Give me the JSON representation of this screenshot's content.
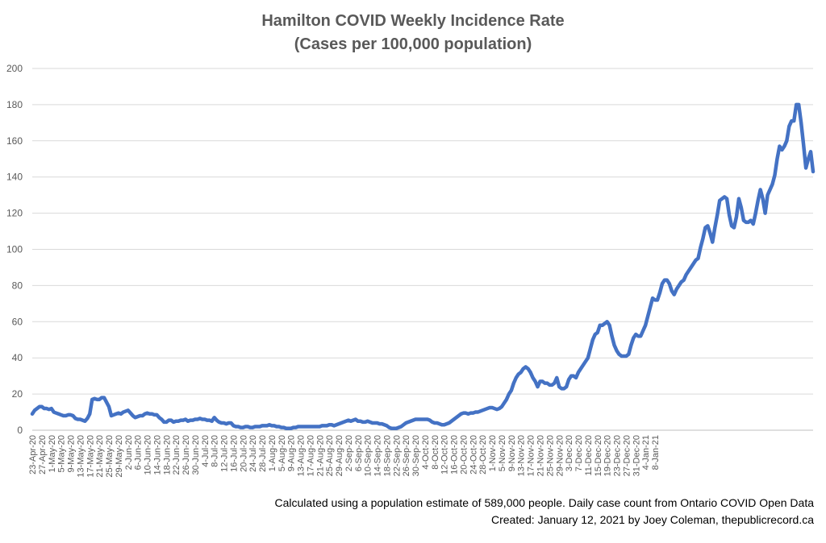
{
  "chart_data": {
    "type": "line",
    "title": "Hamilton COVID Weekly Incidence Rate",
    "subtitle": "(Cases per 100,000 population)",
    "ylim": [
      0,
      200
    ],
    "yticks": [
      0,
      20,
      40,
      60,
      80,
      100,
      120,
      140,
      160,
      180,
      200
    ],
    "grid": true,
    "line_color": "#4472C4",
    "x_start_date": "23-Apr-20",
    "x_tick_labels": [
      "23-Apr-20",
      "27-Apr-20",
      "1-May-20",
      "5-May-20",
      "9-May-20",
      "13-May-20",
      "17-May-20",
      "21-May-20",
      "25-May-20",
      "29-May-20",
      "2-Jun-20",
      "6-Jun-20",
      "10-Jun-20",
      "14-Jun-20",
      "18-Jun-20",
      "22-Jun-20",
      "26-Jun-20",
      "30-Jun-20",
      "4-Jul-20",
      "8-Jul-20",
      "12-Jul-20",
      "16-Jul-20",
      "20-Jul-20",
      "24-Jul-20",
      "28-Jul-20",
      "1-Aug-20",
      "5-Aug-20",
      "9-Aug-20",
      "13-Aug-20",
      "17-Aug-20",
      "21-Aug-20",
      "25-Aug-20",
      "29-Aug-20",
      "2-Sep-20",
      "6-Sep-20",
      "10-Sep-20",
      "14-Sep-20",
      "18-Sep-20",
      "22-Sep-20",
      "26-Sep-20",
      "30-Sep-20",
      "4-Oct-20",
      "8-Oct-20",
      "12-Oct-20",
      "16-Oct-20",
      "20-Oct-20",
      "24-Oct-20",
      "28-Oct-20",
      "1-Nov-20",
      "5-Nov-20",
      "9-Nov-20",
      "13-Nov-20",
      "17-Nov-20",
      "21-Nov-20",
      "25-Nov-20",
      "29-Nov-20",
      "3-Dec-20",
      "7-Dec-20",
      "11-Dec-20",
      "15-Dec-20",
      "19-Dec-20",
      "23-Dec-20",
      "27-Dec-20",
      "31-Dec-20",
      "4-Jan-21",
      "8-Jan-21"
    ],
    "series": [
      {
        "values": [
          9,
          11,
          12,
          13,
          13,
          12,
          12,
          11.5,
          12,
          10,
          9.5,
          9,
          8.5,
          8,
          8,
          8.5,
          8.5,
          8,
          6.5,
          6,
          6,
          5.5,
          5,
          6.5,
          9,
          17,
          17.5,
          17,
          17,
          18,
          18,
          15.5,
          13,
          8,
          8.5,
          9,
          9.5,
          9,
          10,
          10.5,
          11,
          9.5,
          8,
          7,
          7.5,
          8,
          8,
          9,
          9.5,
          9,
          9,
          8.5,
          8.5,
          7,
          6,
          4.5,
          4.5,
          5.5,
          5.5,
          4.5,
          5,
          5,
          5.5,
          5.5,
          6,
          5,
          5.5,
          5.5,
          6,
          6,
          6.5,
          6,
          6,
          5.5,
          5.5,
          5,
          7,
          5.5,
          4.5,
          4,
          4,
          3.5,
          4,
          4,
          2.5,
          2,
          2,
          1.5,
          1.5,
          2,
          2,
          1.5,
          1.5,
          2,
          2,
          2,
          2.5,
          2.5,
          2.5,
          3,
          2.5,
          2.5,
          2,
          2,
          1.5,
          1.5,
          1,
          1,
          1,
          1.5,
          1.5,
          2,
          2,
          2,
          2,
          2,
          2,
          2,
          2,
          2,
          2,
          2.5,
          2.5,
          2.5,
          3,
          3,
          2.5,
          3,
          3.5,
          4,
          4.5,
          5,
          5.5,
          5,
          5.5,
          6,
          5,
          5,
          4.5,
          4.5,
          5,
          4.5,
          4,
          4,
          4,
          3.5,
          3.5,
          3,
          2.5,
          1.5,
          1,
          1,
          1,
          1.5,
          2,
          3,
          4,
          4.5,
          5,
          5.5,
          6,
          6,
          6,
          6,
          6,
          6,
          5.5,
          4.5,
          4,
          4,
          3.5,
          3,
          3,
          3.5,
          4,
          5,
          6,
          7,
          8,
          9,
          9.5,
          9.5,
          9,
          9.5,
          9.5,
          10,
          10,
          10.5,
          11,
          11.5,
          12,
          12.5,
          12.5,
          12,
          11.5,
          12,
          13,
          15,
          17,
          20,
          22,
          26,
          29,
          31,
          32,
          34,
          35,
          34,
          32,
          29,
          27,
          24,
          27,
          27,
          26,
          26,
          25,
          25,
          26,
          29,
          24,
          23,
          23,
          24,
          28,
          30,
          30,
          29,
          32,
          34,
          36,
          38,
          40,
          45,
          50,
          53,
          54,
          58,
          58,
          59,
          60,
          58,
          52,
          47,
          44,
          42,
          41,
          41,
          41,
          42,
          47,
          51,
          53,
          52,
          52,
          55,
          58,
          63,
          68,
          73,
          72,
          72,
          76,
          81,
          83,
          83,
          81,
          77,
          75,
          78,
          80,
          82,
          83,
          86,
          88,
          90,
          92,
          94,
          95,
          101,
          106,
          112,
          113,
          109,
          104,
          112,
          119,
          127,
          128,
          129,
          128,
          119,
          113,
          112,
          118,
          128,
          123,
          116,
          115,
          115,
          116,
          114,
          120,
          127,
          133,
          128,
          120,
          130,
          133,
          136,
          141,
          150,
          157,
          155,
          157,
          160,
          168,
          171,
          171,
          180,
          180,
          170,
          158,
          145,
          150,
          154,
          143
        ]
      }
    ]
  },
  "footer": {
    "line1": "Calculated using a population estimate of 589,000 people. Daily case count from Ontario COVID Open Data",
    "line2": "Created: January 12, 2021 by Joey Coleman, thepublicrecord.ca"
  }
}
